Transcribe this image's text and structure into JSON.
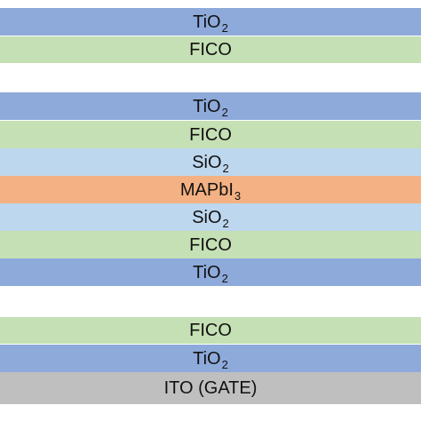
{
  "colors": {
    "TiO2": "#8eaadb",
    "FICO": "#c5e0b4",
    "SiO2": "#bdd7ee",
    "MAPbI3": "#f4b183",
    "ITO": "#bfbfbf"
  },
  "stack": [
    {
      "base": "TiO",
      "sub": "2",
      "material": "TiO2"
    },
    {
      "base": "FICO",
      "sub": "",
      "material": "FICO"
    },
    {
      "base": "TiO",
      "sub": "2",
      "material": "TiO2"
    },
    {
      "base": "FICO",
      "sub": "",
      "material": "FICO"
    },
    {
      "base": "SiO",
      "sub": "2",
      "material": "SiO2"
    },
    {
      "base": "MAPbI",
      "sub": "3",
      "material": "MAPbI3"
    },
    {
      "base": "SiO",
      "sub": "2",
      "material": "SiO2"
    },
    {
      "base": "FICO",
      "sub": "",
      "material": "FICO"
    },
    {
      "base": "TiO",
      "sub": "2",
      "material": "TiO2"
    },
    {
      "base": "FICO",
      "sub": "",
      "material": "FICO"
    },
    {
      "base": "TiO",
      "sub": "2",
      "material": "TiO2"
    },
    {
      "base": "ITO (GATE)",
      "sub": "",
      "material": "ITO"
    }
  ]
}
